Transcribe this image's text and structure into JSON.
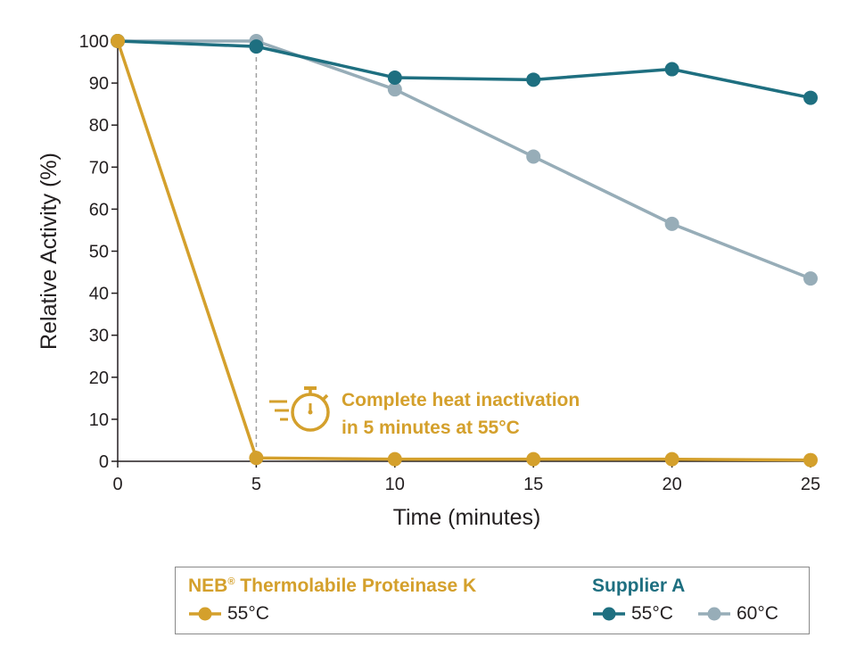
{
  "chart_data": {
    "type": "line",
    "x": [
      0,
      5,
      10,
      15,
      20,
      25
    ],
    "xlabel": "Time (minutes)",
    "ylabel": "Relative Activity (%)",
    "xlim": [
      0,
      25
    ],
    "ylim": [
      0,
      100
    ],
    "xticks": [
      "0",
      "5",
      "10",
      "15",
      "20",
      "25"
    ],
    "yticks": [
      "0",
      "10",
      "20",
      "30",
      "40",
      "50",
      "60",
      "70",
      "80",
      "90",
      "100"
    ],
    "grid": false,
    "series": [
      {
        "name": "60°C",
        "group": "Supplier A",
        "color": "#97adb8",
        "values": [
          100,
          100,
          88.5,
          72.5,
          56.5,
          43.5
        ]
      },
      {
        "name": "55°C",
        "group": "Supplier A",
        "color": "#1e6f80",
        "values": [
          100,
          98.7,
          91.3,
          90.8,
          93.3,
          86.5
        ]
      },
      {
        "name": "55°C",
        "group": "NEB® Thermolabile Proteinase K",
        "color": "#d4a02c",
        "values": [
          100,
          0.8,
          0.5,
          0.5,
          0.5,
          0.3
        ]
      }
    ],
    "annotation": {
      "line1": "Complete heat inactivation",
      "line2": "in 5 minutes at 55°C",
      "marker_x": 5,
      "icon": "stopwatch-icon"
    },
    "legend": {
      "placement": "bottom",
      "neb_title": "NEB",
      "neb_title_sup": "®",
      "neb_title_rest": " Thermolabile Proteinase K",
      "supplier_title": "Supplier A",
      "neb_entry": "55°C",
      "supplier_entry_1": "55°C",
      "supplier_entry_2": "60°C"
    }
  }
}
